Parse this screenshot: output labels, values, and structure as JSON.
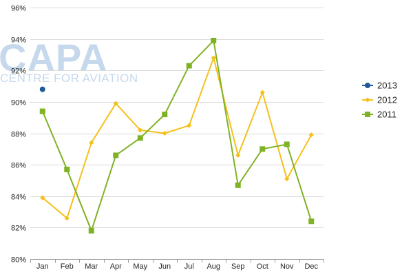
{
  "watermark": {
    "main": "CAPA",
    "sub": "CENTRE FOR AVIATION"
  },
  "chart_data": {
    "type": "line",
    "categories": [
      "Jan",
      "Feb",
      "Mar",
      "Apr",
      "May",
      "Jun",
      "Jul",
      "Aug",
      "Sep",
      "Oct",
      "Nov",
      "Dec"
    ],
    "ylim": [
      80,
      96
    ],
    "yticks": [
      80,
      82,
      84,
      86,
      88,
      90,
      92,
      94,
      96
    ],
    "ytick_format": "%",
    "grid": true,
    "legend_position": "right",
    "title": "",
    "xlabel": "",
    "ylabel": "",
    "series": [
      {
        "name": "2013",
        "color": "#1f5a9a",
        "marker": "circle",
        "values": [
          90.8,
          null,
          null,
          null,
          null,
          null,
          null,
          null,
          null,
          null,
          null,
          null
        ]
      },
      {
        "name": "2012",
        "color": "#f5c01b",
        "marker": "diamond",
        "values": [
          83.9,
          82.6,
          87.4,
          89.9,
          88.2,
          88.0,
          88.5,
          92.8,
          86.6,
          90.6,
          85.1,
          87.9
        ]
      },
      {
        "name": "2011",
        "color": "#7fb224",
        "marker": "square",
        "values": [
          89.4,
          85.7,
          81.8,
          86.6,
          87.7,
          89.2,
          92.3,
          93.9,
          84.7,
          87.0,
          87.3,
          82.4
        ]
      }
    ]
  }
}
